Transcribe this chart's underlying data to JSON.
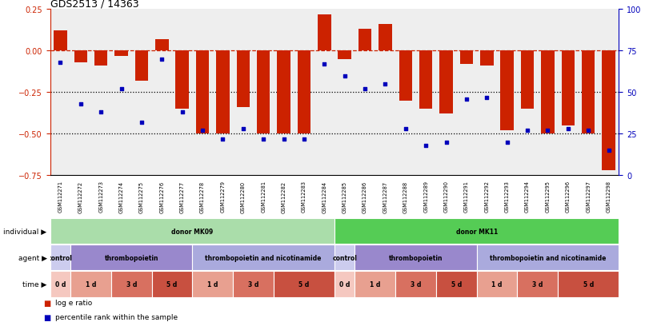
{
  "title": "GDS2513 / 14363",
  "samples": [
    "GSM112271",
    "GSM112272",
    "GSM112273",
    "GSM112274",
    "GSM112275",
    "GSM112276",
    "GSM112277",
    "GSM112278",
    "GSM112279",
    "GSM112280",
    "GSM112281",
    "GSM112282",
    "GSM112283",
    "GSM112284",
    "GSM112285",
    "GSM112286",
    "GSM112287",
    "GSM112288",
    "GSM112289",
    "GSM112290",
    "GSM112291",
    "GSM112292",
    "GSM112293",
    "GSM112294",
    "GSM112295",
    "GSM112296",
    "GSM112297",
    "GSM112298"
  ],
  "log_e_ratio": [
    0.12,
    -0.07,
    -0.09,
    -0.03,
    -0.18,
    0.07,
    -0.35,
    -0.5,
    -0.5,
    -0.34,
    -0.5,
    -0.5,
    -0.5,
    0.22,
    -0.05,
    0.13,
    0.16,
    -0.3,
    -0.35,
    -0.38,
    -0.08,
    -0.09,
    -0.48,
    -0.35,
    -0.5,
    -0.45,
    -0.5,
    -0.72
  ],
  "percentile": [
    68,
    43,
    38,
    52,
    32,
    70,
    38,
    27,
    22,
    28,
    22,
    22,
    22,
    67,
    60,
    52,
    55,
    28,
    18,
    20,
    46,
    47,
    20,
    27,
    27,
    28,
    27,
    15
  ],
  "bar_color": "#cc2200",
  "dot_color": "#0000bb",
  "bg_color": "#ffffff",
  "plot_bg": "#eeeeee",
  "ylim_left": [
    -0.75,
    0.25
  ],
  "ylim_right": [
    0,
    100
  ],
  "yticks_left": [
    -0.75,
    -0.5,
    -0.25,
    0,
    0.25
  ],
  "yticks_right": [
    0,
    25,
    50,
    75,
    100
  ],
  "dotted_lines": [
    -0.25,
    -0.5
  ],
  "legend_bar_label": "log e ratio",
  "legend_dot_label": "percentile rank within the sample",
  "individual_groups": [
    {
      "name": "donor MK09",
      "start": 0,
      "end": 13,
      "color": "#aaddaa"
    },
    {
      "name": "donor MK11",
      "start": 14,
      "end": 27,
      "color": "#55cc55"
    }
  ],
  "agent_groups": [
    {
      "name": "control",
      "start": 0,
      "end": 0,
      "color": "#ccccee"
    },
    {
      "name": "thrombopoietin",
      "start": 1,
      "end": 6,
      "color": "#9988cc"
    },
    {
      "name": "thrombopoietin and nicotinamide",
      "start": 7,
      "end": 13,
      "color": "#aaaadd"
    },
    {
      "name": "control",
      "start": 14,
      "end": 14,
      "color": "#ccccee"
    },
    {
      "name": "thrombopoietin",
      "start": 15,
      "end": 20,
      "color": "#9988cc"
    },
    {
      "name": "thrombopoietin and nicotinamide",
      "start": 21,
      "end": 27,
      "color": "#aaaadd"
    }
  ],
  "time_groups": [
    {
      "name": "0 d",
      "start": 0,
      "end": 0,
      "color": "#f5c8c0"
    },
    {
      "name": "1 d",
      "start": 1,
      "end": 2,
      "color": "#e8a090"
    },
    {
      "name": "3 d",
      "start": 3,
      "end": 4,
      "color": "#d87060"
    },
    {
      "name": "5 d",
      "start": 5,
      "end": 6,
      "color": "#c85040"
    },
    {
      "name": "1 d",
      "start": 7,
      "end": 8,
      "color": "#e8a090"
    },
    {
      "name": "3 d",
      "start": 9,
      "end": 10,
      "color": "#d87060"
    },
    {
      "name": "5 d",
      "start": 11,
      "end": 13,
      "color": "#c85040"
    },
    {
      "name": "0 d",
      "start": 14,
      "end": 14,
      "color": "#f5c8c0"
    },
    {
      "name": "1 d",
      "start": 15,
      "end": 16,
      "color": "#e8a090"
    },
    {
      "name": "3 d",
      "start": 17,
      "end": 18,
      "color": "#d87060"
    },
    {
      "name": "5 d",
      "start": 19,
      "end": 20,
      "color": "#c85040"
    },
    {
      "name": "1 d",
      "start": 21,
      "end": 22,
      "color": "#e8a090"
    },
    {
      "name": "3 d",
      "start": 23,
      "end": 24,
      "color": "#d87060"
    },
    {
      "name": "5 d",
      "start": 25,
      "end": 27,
      "color": "#c85040"
    }
  ]
}
